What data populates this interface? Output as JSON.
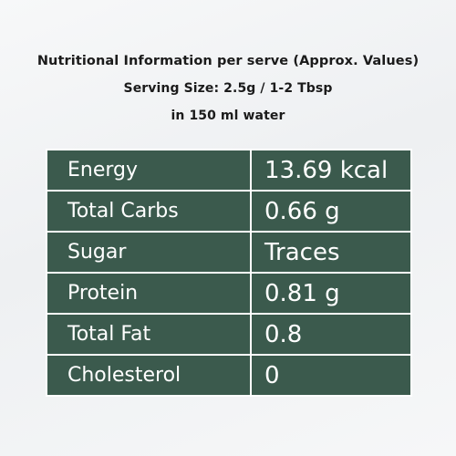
{
  "header": {
    "line1": "Nutritional Information per serve (Approx. Values)",
    "line2": "Serving Size: 2.5g / 1-2 Tbsp",
    "line3": "in 150 ml water"
  },
  "table": {
    "rows": [
      {
        "label": "Energy",
        "value": "13.69 kcal"
      },
      {
        "label": "Total Carbs",
        "value": "0.66 g"
      },
      {
        "label": "Sugar",
        "value": "Traces"
      },
      {
        "label": "Protein",
        "value": "0.81 g"
      },
      {
        "label": "Total Fat",
        "value": "0.8"
      },
      {
        "label": "Cholesterol",
        "value": "0"
      }
    ]
  },
  "colors": {
    "table_background": "#3b5a4d",
    "table_text": "#ffffff",
    "header_text": "#1b1b1b"
  }
}
